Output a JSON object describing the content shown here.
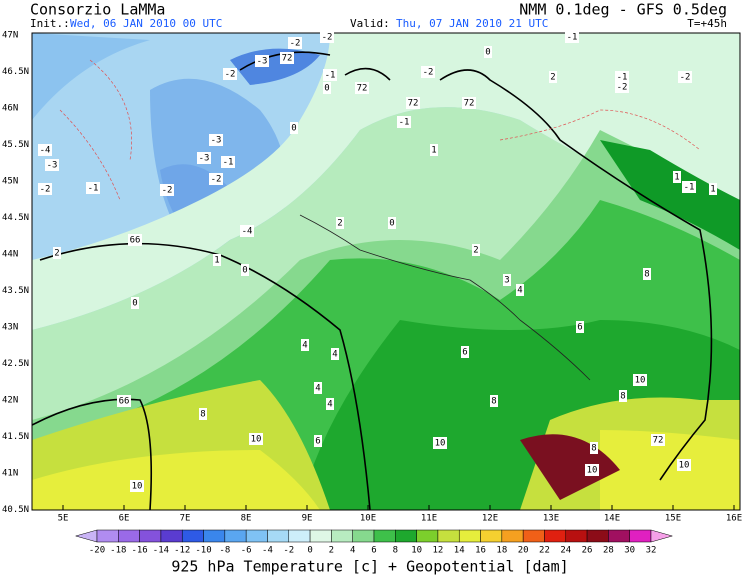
{
  "header": {
    "agency": "Consorzio LaMMa",
    "model": "NMM 0.1deg - GFS 0.5deg",
    "init_label": "Init.:",
    "init_time": "Wed, 06 JAN 2010  00 UTC",
    "valid_label": "Valid:",
    "valid_time": "Thu, 07 JAN 2010  21 UTC",
    "lead_time": "T=+45h"
  },
  "map": {
    "lat_labels": [
      "47N",
      "46.5N",
      "46N",
      "45.5N",
      "45N",
      "44.5N",
      "44N",
      "43.5N",
      "43N",
      "42.5N",
      "42N",
      "41.5N",
      "41N",
      "40.5N"
    ],
    "lon_labels": [
      "5E",
      "6E",
      "7E",
      "8E",
      "9E",
      "10E",
      "11E",
      "12E",
      "13E",
      "14E",
      "15E",
      "16E"
    ],
    "contour_labels": [
      "-2",
      "-2",
      "-1",
      "0",
      "72",
      "-3",
      "-2",
      "-1",
      "0",
      "72",
      "-2",
      "2",
      "-1",
      "-2",
      "-2",
      "72",
      "72",
      "-1",
      "0",
      "1",
      "-4",
      "-3",
      "-3",
      "-3",
      "-1",
      "-2",
      "-2",
      "-1",
      "-2",
      "1",
      "1",
      "-1",
      "-4",
      "2",
      "66",
      "0",
      "1",
      "0",
      "2",
      "0",
      "2",
      "3",
      "4",
      "8",
      "6",
      "4",
      "4",
      "4",
      "4",
      "6",
      "10",
      "8",
      "8",
      "66",
      "8",
      "72",
      "10",
      "6",
      "10",
      "8",
      "10",
      "10",
      "10"
    ]
  },
  "legend": {
    "ticks": [
      -20,
      -18,
      -16,
      -14,
      -12,
      -10,
      -8,
      -6,
      -4,
      -2,
      0,
      2,
      4,
      6,
      8,
      10,
      12,
      14,
      16,
      18,
      20,
      22,
      24,
      26,
      28,
      30,
      32
    ],
    "colors": [
      "#c9b4f5",
      "#b08cf0",
      "#9a6ae8",
      "#8452dc",
      "#5a3cd0",
      "#2e5ae6",
      "#3a86ec",
      "#5aa6f0",
      "#7fc2f4",
      "#a6daf6",
      "#cdeefa",
      "#dff7e6",
      "#b8ecc0",
      "#86d98e",
      "#3ec04a",
      "#1ea82e",
      "#7ccf2c",
      "#c6e03e",
      "#e6ee3c",
      "#f5d030",
      "#f5a020",
      "#f06018",
      "#e02010",
      "#b81010",
      "#8c0c18",
      "#a01060",
      "#e020c0",
      "#f5a0e8"
    ]
  },
  "footer": {
    "caption": "925 hPa Temperature [c] + Geopotential [dam]"
  }
}
